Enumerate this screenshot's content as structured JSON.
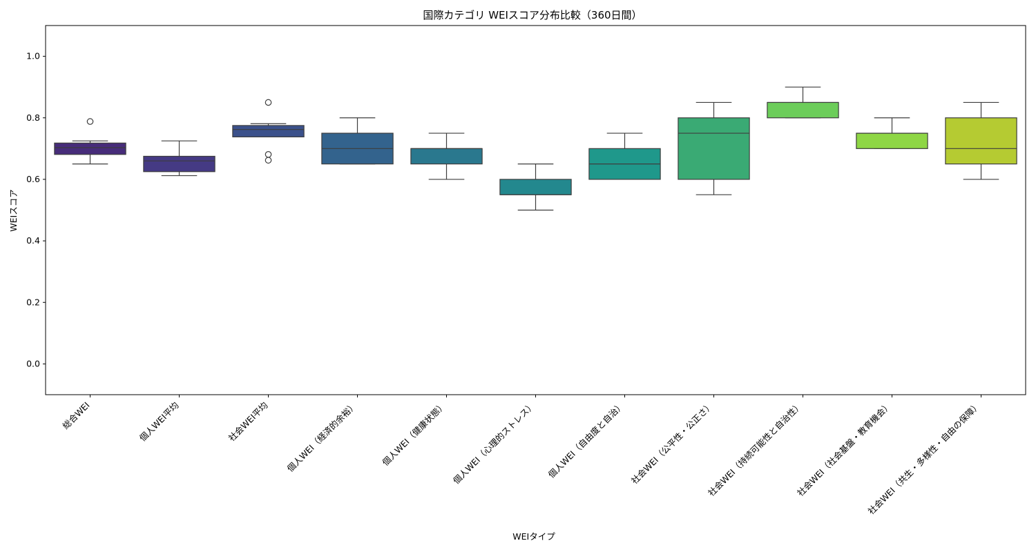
{
  "chart_data": {
    "type": "box",
    "title": "国際カテゴリ WEIスコア分布比較（360日間）",
    "xlabel": "WEIタイプ",
    "ylabel": "WEIスコア",
    "ylim": [
      -0.1,
      1.1
    ],
    "yticks": [
      "0.0",
      "0.2",
      "0.4",
      "0.6",
      "0.8",
      "1.0"
    ],
    "grid": false,
    "categories": [
      "総合WEI",
      "個人WEI平均",
      "社会WEI平均",
      "個人WEI（経済的余裕）",
      "個人WEI（健康状態）",
      "個人WEI（心理的ストレス）",
      "個人WEI（自由度と自治）",
      "社会WEI（公平性・公正さ）",
      "社会WEI（持続可能性と自治性）",
      "社会WEI（社会基盤・教育機会）",
      "社会WEI（共生・多様性・自由の保障）"
    ],
    "boxes": [
      {
        "whisker_low": 0.65,
        "q1": 0.681,
        "median": 0.703,
        "q3": 0.718,
        "whisker_high": 0.725,
        "outliers": [
          0.788
        ],
        "color": "#472c7a"
      },
      {
        "whisker_low": 0.612,
        "q1": 0.625,
        "median": 0.66,
        "q3": 0.675,
        "whisker_high": 0.725,
        "outliers": [],
        "color": "#453a84"
      },
      {
        "whisker_low": 0.738,
        "q1": 0.738,
        "median": 0.762,
        "q3": 0.775,
        "whisker_high": 0.781,
        "outliers": [
          0.85,
          0.681,
          0.662
        ],
        "color": "#3b518b"
      },
      {
        "whisker_low": 0.65,
        "q1": 0.65,
        "median": 0.7,
        "q3": 0.75,
        "whisker_high": 0.8,
        "outliers": [],
        "color": "#33638d"
      },
      {
        "whisker_low": 0.6,
        "q1": 0.65,
        "median": 0.7,
        "q3": 0.7,
        "whisker_high": 0.75,
        "outliers": [],
        "color": "#2a788e"
      },
      {
        "whisker_low": 0.5,
        "q1": 0.55,
        "median": 0.55,
        "q3": 0.6,
        "whisker_high": 0.65,
        "outliers": [],
        "color": "#23888e"
      },
      {
        "whisker_low": 0.6,
        "q1": 0.6,
        "median": 0.65,
        "q3": 0.7,
        "whisker_high": 0.75,
        "outliers": [],
        "color": "#1f988b"
      },
      {
        "whisker_low": 0.55,
        "q1": 0.6,
        "median": 0.75,
        "q3": 0.8,
        "whisker_high": 0.85,
        "outliers": [],
        "color": "#3aaa74"
      },
      {
        "whisker_low": 0.8,
        "q1": 0.8,
        "median": 0.85,
        "q3": 0.85,
        "whisker_high": 0.9,
        "outliers": [],
        "color": "#6ccd5a"
      },
      {
        "whisker_low": 0.7,
        "q1": 0.7,
        "median": 0.75,
        "q3": 0.75,
        "whisker_high": 0.8,
        "outliers": [],
        "color": "#8ed645"
      },
      {
        "whisker_low": 0.6,
        "q1": 0.65,
        "median": 0.7,
        "q3": 0.8,
        "whisker_high": 0.85,
        "outliers": [],
        "color": "#b5cb32"
      }
    ]
  }
}
